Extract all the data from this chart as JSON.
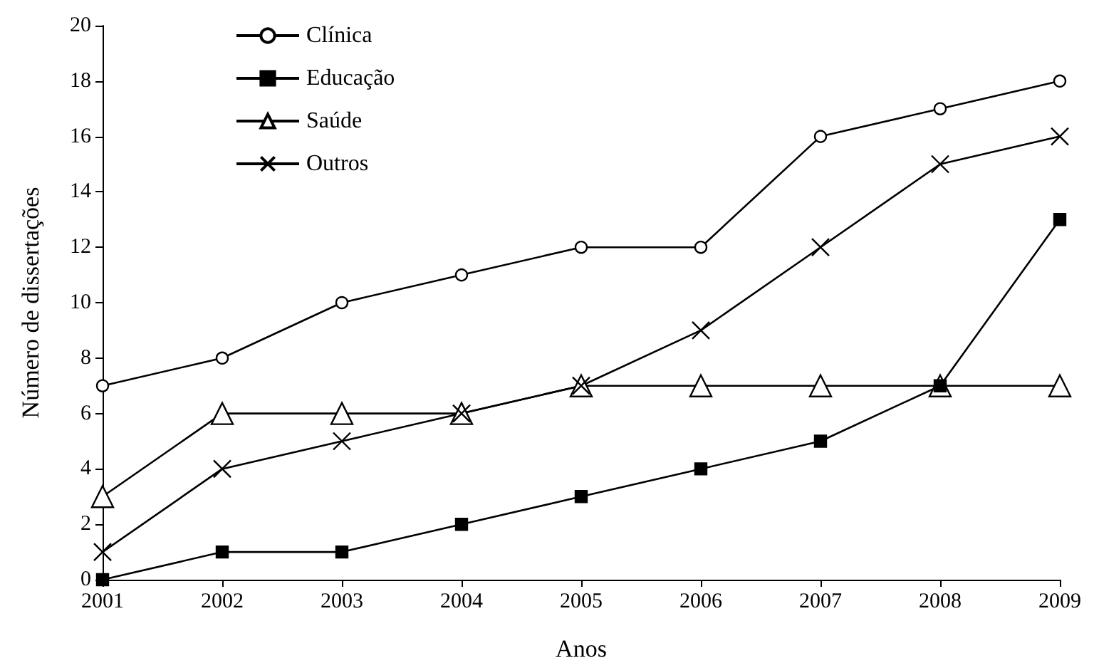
{
  "chart_data": {
    "type": "line",
    "xlabel": "Anos",
    "ylabel": "Número de dissertações",
    "categories": [
      "2001",
      "2002",
      "2003",
      "2004",
      "2005",
      "2006",
      "2007",
      "2008",
      "2009"
    ],
    "series": [
      {
        "name": "Clínica",
        "color": "#000000",
        "marker": "circle",
        "values": [
          7,
          8,
          10,
          11,
          12,
          12,
          16,
          17,
          18
        ]
      },
      {
        "name": "Educação",
        "color": "#000000",
        "marker": "square",
        "values": [
          0,
          1,
          1,
          2,
          3,
          4,
          5,
          7,
          13
        ]
      },
      {
        "name": "Saúde",
        "color": "#000000",
        "marker": "triangle",
        "values": [
          3,
          6,
          6,
          6,
          7,
          7,
          7,
          7,
          7
        ]
      },
      {
        "name": "Outros",
        "color": "#000000",
        "marker": "cross",
        "values": [
          1,
          4,
          5,
          6,
          7,
          9,
          12,
          15,
          16
        ]
      }
    ],
    "ylim": [
      0,
      20
    ],
    "yticks": [
      0,
      2,
      4,
      6,
      8,
      10,
      12,
      14,
      16,
      18,
      20
    ],
    "grid": false,
    "legend": "top left",
    "line_style": "solid"
  }
}
